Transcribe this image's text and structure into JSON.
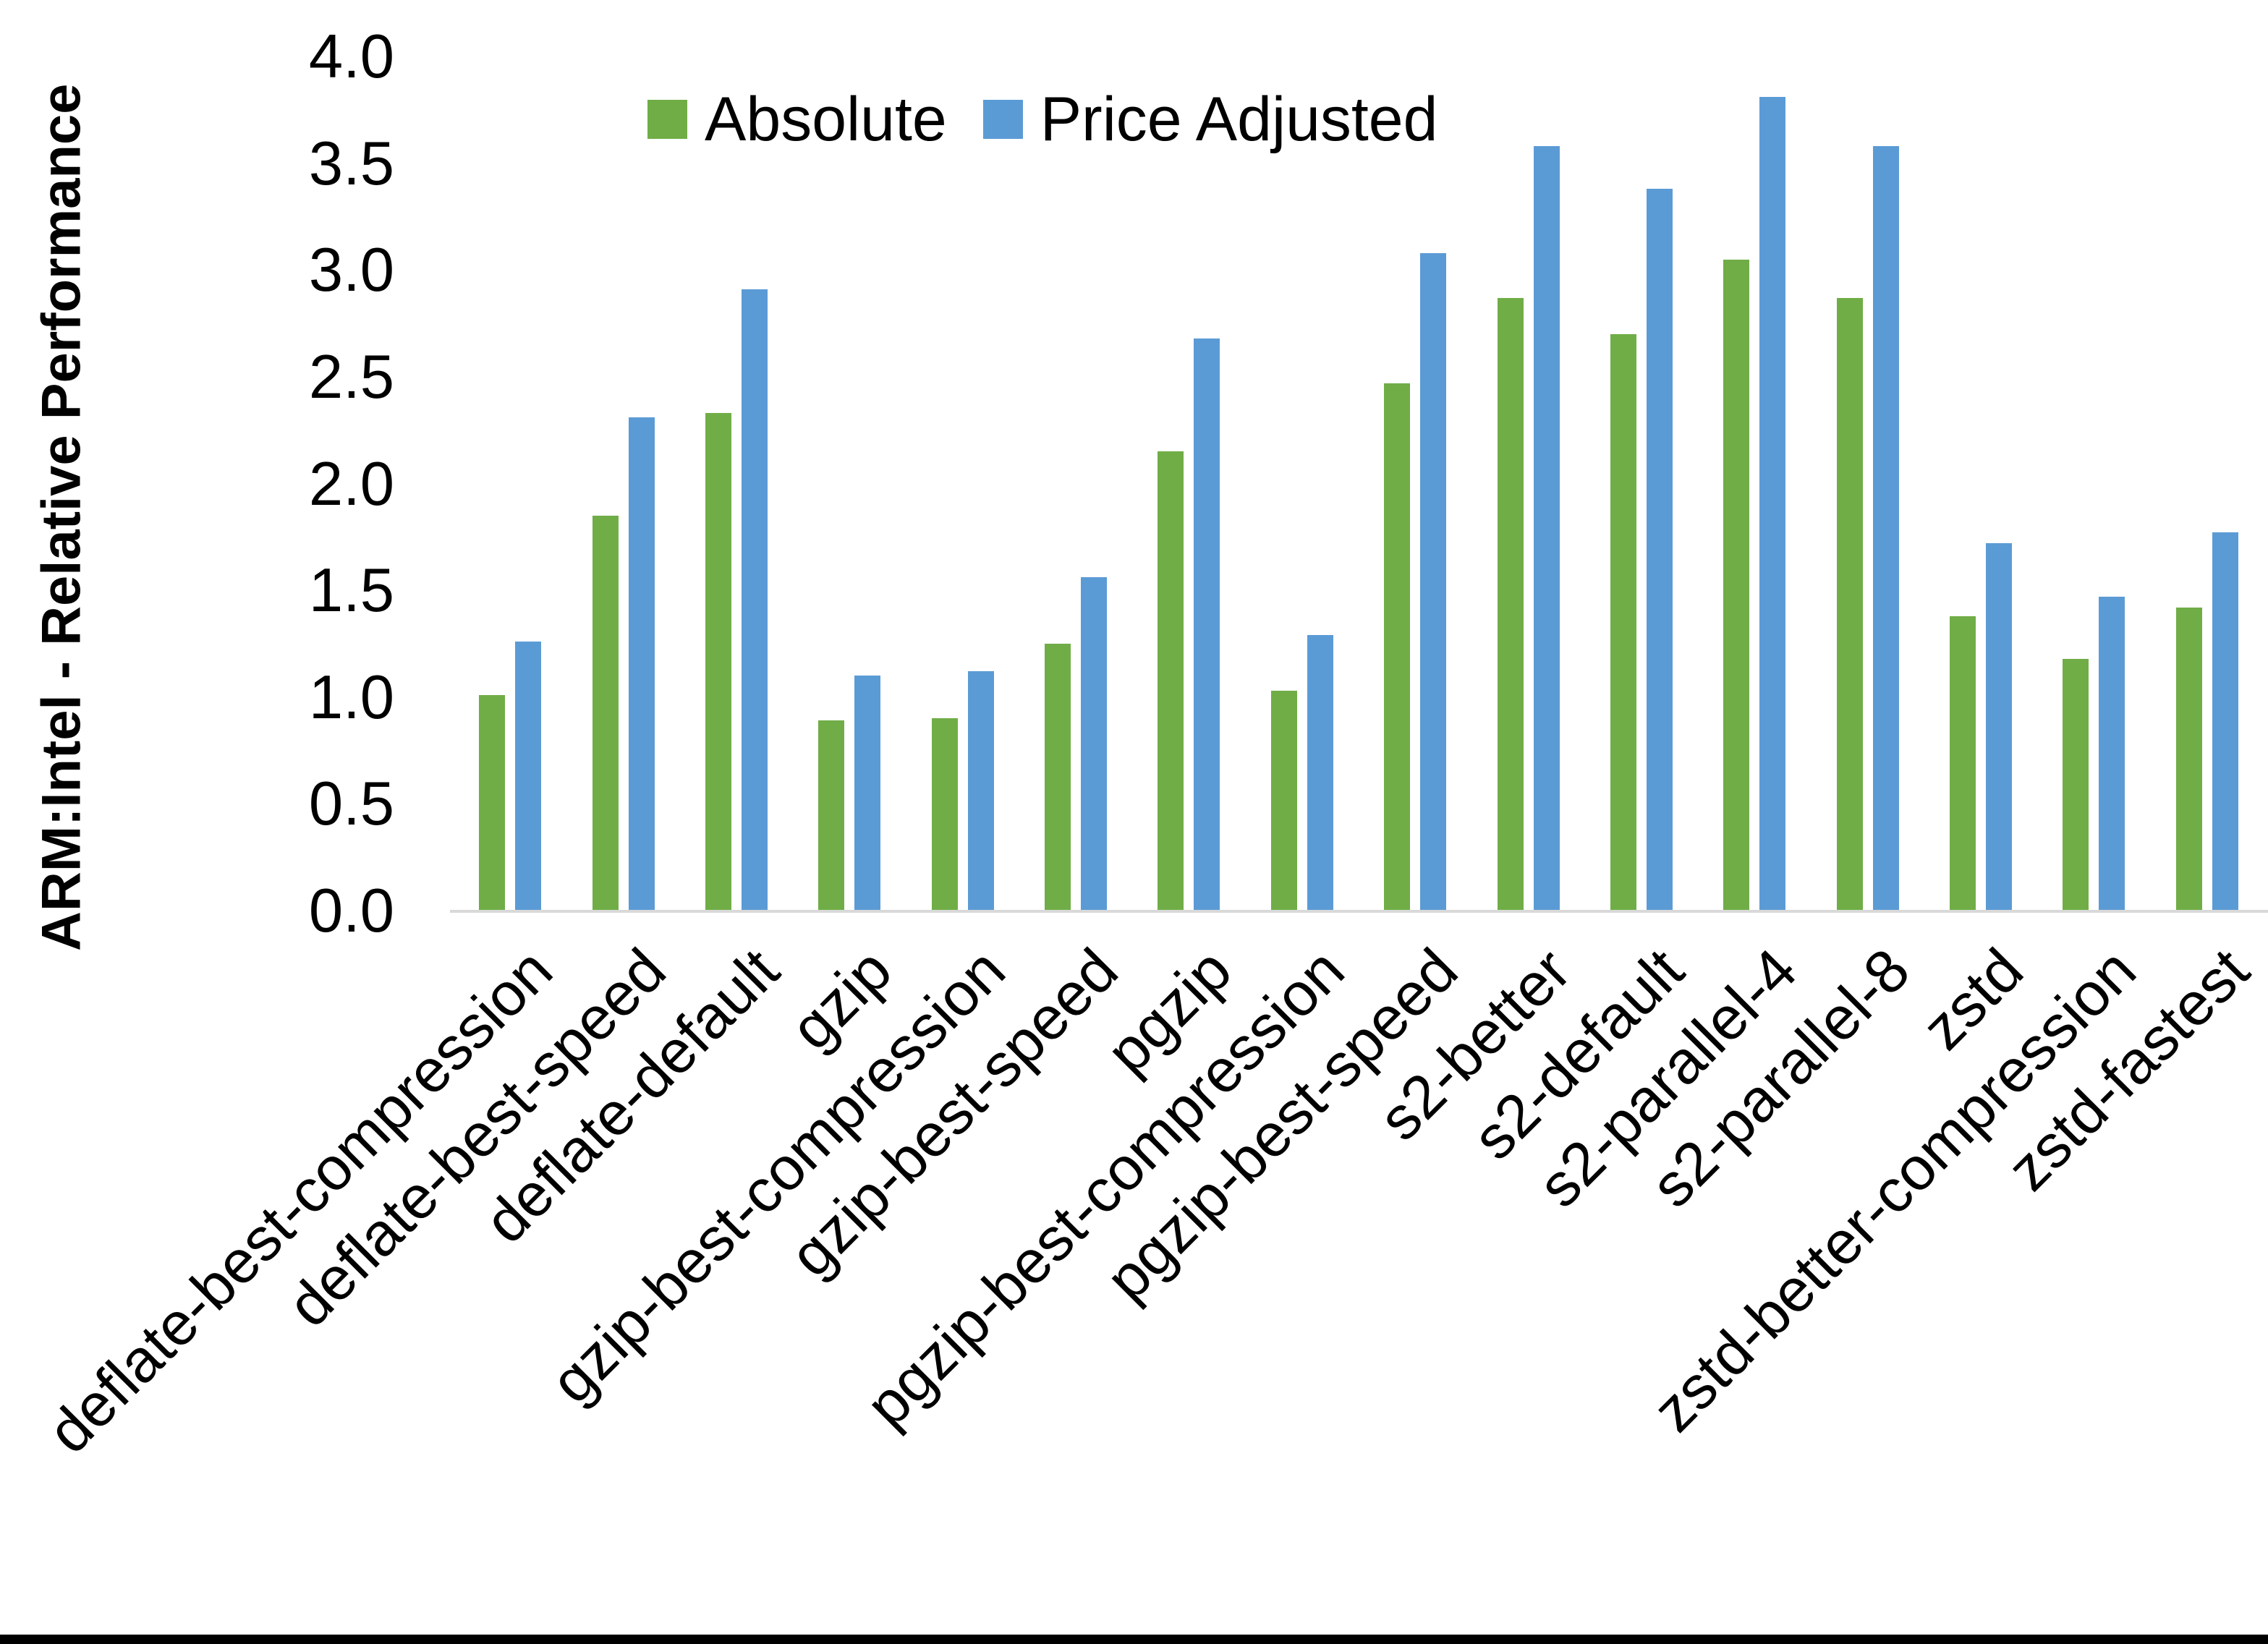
{
  "figure": {
    "background_color": "#FFFFFF",
    "bottom_border_color": "#000000",
    "axis_line_color": "#D9D9D9"
  },
  "legend": {
    "items": [
      {
        "label": "Absolute",
        "color": "#70AD47"
      },
      {
        "label": "Price Adjusted",
        "color": "#5B9BD5"
      }
    ]
  },
  "chart_data": {
    "type": "bar",
    "title": "",
    "xlabel": "",
    "ylabel": "ARM:Intel - Relative Performance",
    "ylim": [
      0.0,
      4.0
    ],
    "ytick_step": 0.5,
    "yticks": [
      "4.0",
      "3.5",
      "3.0",
      "2.5",
      "2.0",
      "1.5",
      "1.0",
      "0.5",
      "0.0"
    ],
    "grid": false,
    "legend_position": "top-center",
    "x_label_rotation_deg": 45,
    "categories": [
      "deflate-best-compression",
      "deflate-best-speed",
      "deflate-default",
      "gzip",
      "gzip-best-compression",
      "gzip-best-speed",
      "pgzip",
      "pgzip-best-compression",
      "pgzip-best-speed",
      "s2-better",
      "s2-default",
      "s2-parallel-4",
      "s2-parallel-8",
      "zstd",
      "zstd-better-compression",
      "zstd-fastest"
    ],
    "series": [
      {
        "name": "Absolute",
        "color": "#70AD47",
        "values": [
          1.01,
          1.85,
          2.33,
          0.89,
          0.9,
          1.25,
          2.15,
          1.03,
          2.47,
          2.87,
          2.7,
          3.05,
          2.87,
          1.38,
          1.18,
          1.42
        ]
      },
      {
        "name": "Price Adjusted",
        "color": "#5B9BD5",
        "values": [
          1.26,
          2.31,
          2.91,
          1.1,
          1.12,
          1.56,
          2.68,
          1.29,
          3.08,
          3.58,
          3.38,
          3.81,
          3.58,
          1.72,
          1.47,
          1.77
        ]
      }
    ]
  }
}
